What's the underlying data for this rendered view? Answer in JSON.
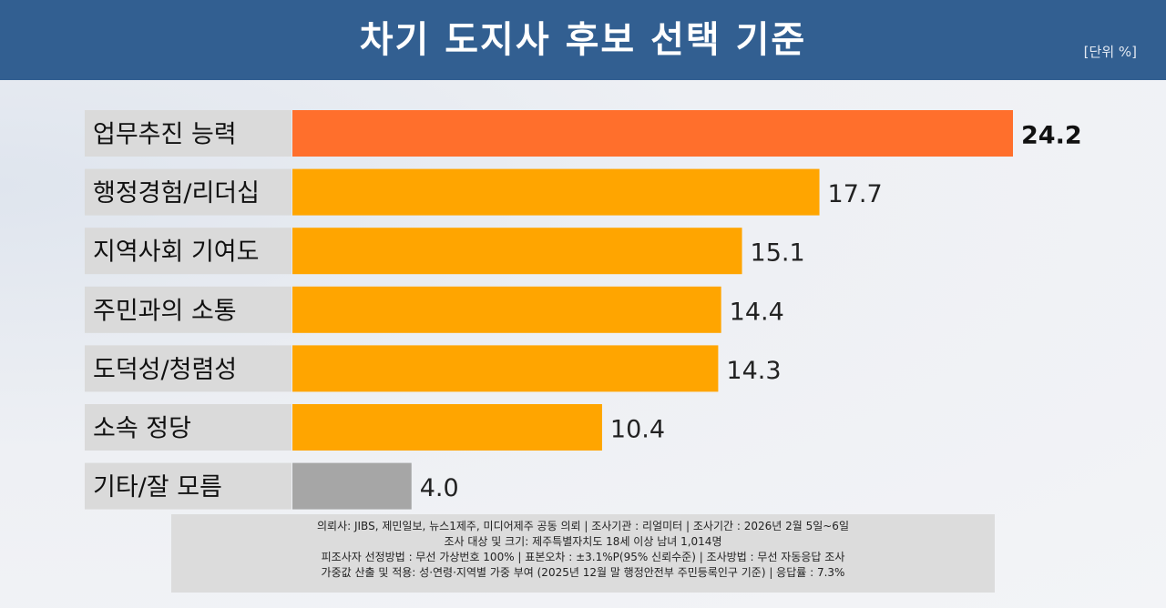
{
  "header": {
    "title": "차기 도지사 후보 선택 기준",
    "unit": "[단위 %]"
  },
  "colors": {
    "header_bg": "#325f91",
    "highlight_bar": "#ff6f2c",
    "bar": "#ffa500",
    "other_bar": "#a6a6a6",
    "label_bg": "#dadada"
  },
  "chart_data": {
    "type": "bar",
    "orientation": "horizontal",
    "categories": [
      "업무추진 능력",
      "행정경험/리더십",
      "지역사회 기여도",
      "주민과의 소통",
      "도덕성/청렴성",
      "소속 정당",
      "기타/잘 모름"
    ],
    "values": [
      24.2,
      17.7,
      15.1,
      14.4,
      14.3,
      10.4,
      4.0
    ],
    "value_labels": [
      "24.2",
      "17.7",
      "15.1",
      "14.4",
      "14.3",
      "10.4",
      "4.0"
    ],
    "xlim": [
      0,
      24.2
    ],
    "grid": false,
    "legend": "none"
  },
  "footnote": {
    "lines": [
      "의뢰사: JIBS, 제민일보, 뉴스1제주, 미디어제주 공동 의뢰 | 조사기관 : 리얼미터  | 조사기간 : 2026년 2월 5일~6일",
      "조사 대상 및 크기: 제주특별자치도 18세 이상 남녀 1,014명",
      "피조사자 선정방법 : 무선 가상번호 100% | 표본오차 : ±3.1%P(95% 신뢰수준) | 조사방법 : 무선 자동응답 조사",
      "가중값 산출 및 적용: 성·연령·지역별 가중 부여 (2025년 12월 말 행정안전부 주민등록인구 기준) | 응답률 : 7.3%"
    ]
  }
}
